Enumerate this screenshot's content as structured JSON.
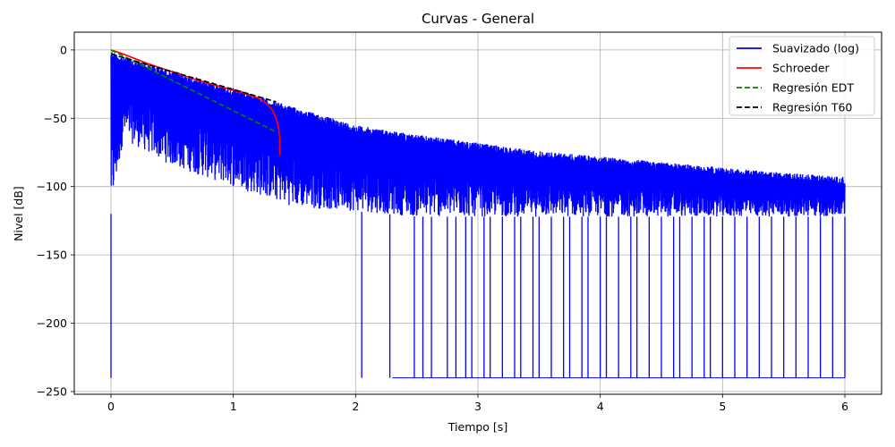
{
  "chart_data": {
    "type": "line",
    "title": "Curvas - General",
    "xlabel": "Tiempo [s]",
    "ylabel": "Nivel [dB]",
    "xlim": [
      -0.3,
      6.3
    ],
    "ylim": [
      -252,
      13
    ],
    "xticks": [
      0,
      1,
      2,
      3,
      4,
      5,
      6
    ],
    "yticks": [
      0,
      -50,
      -100,
      -150,
      -200,
      -250
    ],
    "xtick_labels": [
      "0",
      "1",
      "2",
      "3",
      "4",
      "5",
      "6"
    ],
    "ytick_labels": [
      "0",
      "−50",
      "−100",
      "−150",
      "−200",
      "−250"
    ],
    "grid": true,
    "legend_position": "top-right",
    "series": [
      {
        "name": "Suavizado (log)",
        "style": "solid",
        "color": "#0000ff",
        "envelope": {
          "x": [
            0.0,
            0.05,
            0.1,
            0.5,
            1.0,
            1.5,
            2.0,
            2.5,
            3.0,
            3.5,
            4.0,
            4.5,
            5.0,
            5.5,
            6.0
          ],
          "upper": [
            0,
            -3,
            -5,
            -15,
            -28,
            -42,
            -55,
            -62,
            -68,
            -74,
            -78,
            -82,
            -86,
            -90,
            -93
          ],
          "lower": [
            -120,
            -95,
            -65,
            -85,
            -100,
            -115,
            -118,
            -122,
            -122,
            -122,
            -122,
            -122,
            -122,
            -122,
            -122
          ],
          "floor_drops_to": -240,
          "floor_drop_x": [
            0.0,
            2.05,
            2.28,
            2.48,
            2.55,
            2.62,
            2.75,
            2.82,
            2.9,
            2.95,
            3.05,
            3.1,
            3.2,
            3.3,
            3.35,
            3.45,
            3.5,
            3.6,
            3.7,
            3.75,
            3.85,
            3.9,
            4.0,
            4.05,
            4.15,
            4.25,
            4.3,
            4.4,
            4.5,
            4.6,
            4.65,
            4.75,
            4.85,
            4.9,
            5.0,
            5.1,
            5.2,
            5.3,
            5.4,
            5.5,
            5.6,
            5.7,
            5.8,
            5.9,
            6.0
          ]
        }
      },
      {
        "name": "Schroeder",
        "style": "solid",
        "color": "#ff0000",
        "x": [
          0.0,
          0.1,
          0.3,
          0.5,
          0.7,
          0.9,
          1.1,
          1.2,
          1.27,
          1.32,
          1.35,
          1.37,
          1.38,
          1.38
        ],
        "y": [
          0,
          -3,
          -10,
          -16,
          -22,
          -27,
          -32,
          -35,
          -39,
          -44,
          -50,
          -57,
          -65,
          -77
        ]
      },
      {
        "name": "Regresión EDT",
        "style": "dashed",
        "color": "#008000",
        "x": [
          0.0,
          1.35
        ],
        "y": [
          0,
          -60
        ]
      },
      {
        "name": "Regresión T60",
        "style": "dashed",
        "color": "#000000",
        "x": [
          0.0,
          1.35
        ],
        "y": [
          -3,
          -38
        ]
      }
    ]
  }
}
